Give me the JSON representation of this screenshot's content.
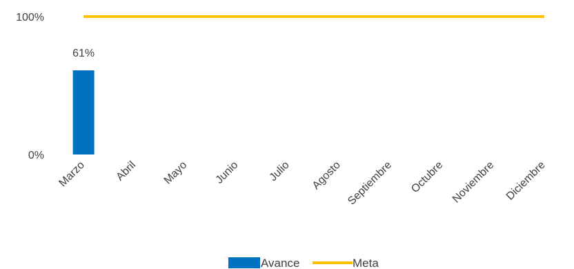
{
  "chart_data": {
    "type": "bar",
    "categories": [
      "Marzo",
      "Abril",
      "Mayo",
      "Junio",
      "Julio",
      "Agosto",
      "Septiembre",
      "Octubre",
      "Noviembre",
      "Diciembre"
    ],
    "series": [
      {
        "name": "Avance",
        "type": "bar",
        "color": "#0070C0",
        "values": [
          0.61,
          null,
          null,
          null,
          null,
          null,
          null,
          null,
          null,
          null
        ],
        "data_labels": [
          "61%",
          "",
          "",
          "",
          "",
          "",
          "",
          "",
          "",
          ""
        ]
      },
      {
        "name": "Meta",
        "type": "line",
        "color": "#FFC000",
        "values": [
          1,
          1,
          1,
          1,
          1,
          1,
          1,
          1,
          1,
          1
        ]
      }
    ],
    "title": "",
    "xlabel": "",
    "ylabel": "",
    "ylim": [
      0,
      1
    ],
    "yticks": [
      0,
      1
    ],
    "ytick_labels": [
      "0%",
      "100%"
    ],
    "grid": false,
    "legend_position": "bottom"
  }
}
